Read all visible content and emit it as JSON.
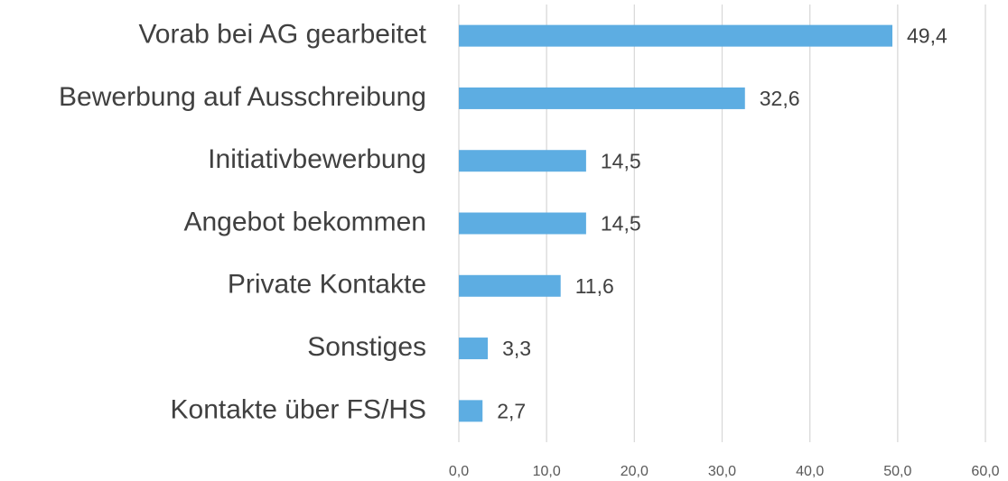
{
  "chart_data": {
    "type": "barh",
    "categories": [
      "Vorab bei AG gearbeitet",
      "Bewerbung auf Ausschreibung",
      "Initiativbewerbung",
      "Angebot bekommen",
      "Private Kontakte",
      "Sonstiges",
      "Kontakte über FS/HS"
    ],
    "values": [
      49.4,
      32.6,
      14.5,
      14.5,
      11.6,
      3.3,
      2.7
    ],
    "value_labels": [
      "49,4",
      "32,6",
      "14,5",
      "14,5",
      "11,6",
      "3,3",
      "2,7"
    ],
    "color": "#5dade2",
    "xlim": [
      0,
      60
    ],
    "xticks": [
      {
        "value": 0,
        "label": "0,0"
      },
      {
        "value": 10,
        "label": "10,0"
      },
      {
        "value": 20,
        "label": "20,0"
      },
      {
        "value": 30,
        "label": "30,0"
      },
      {
        "value": 40,
        "label": "40,0"
      },
      {
        "value": 50,
        "label": "50,0"
      },
      {
        "value": 60,
        "label": "60,0"
      }
    ],
    "grid": true
  }
}
